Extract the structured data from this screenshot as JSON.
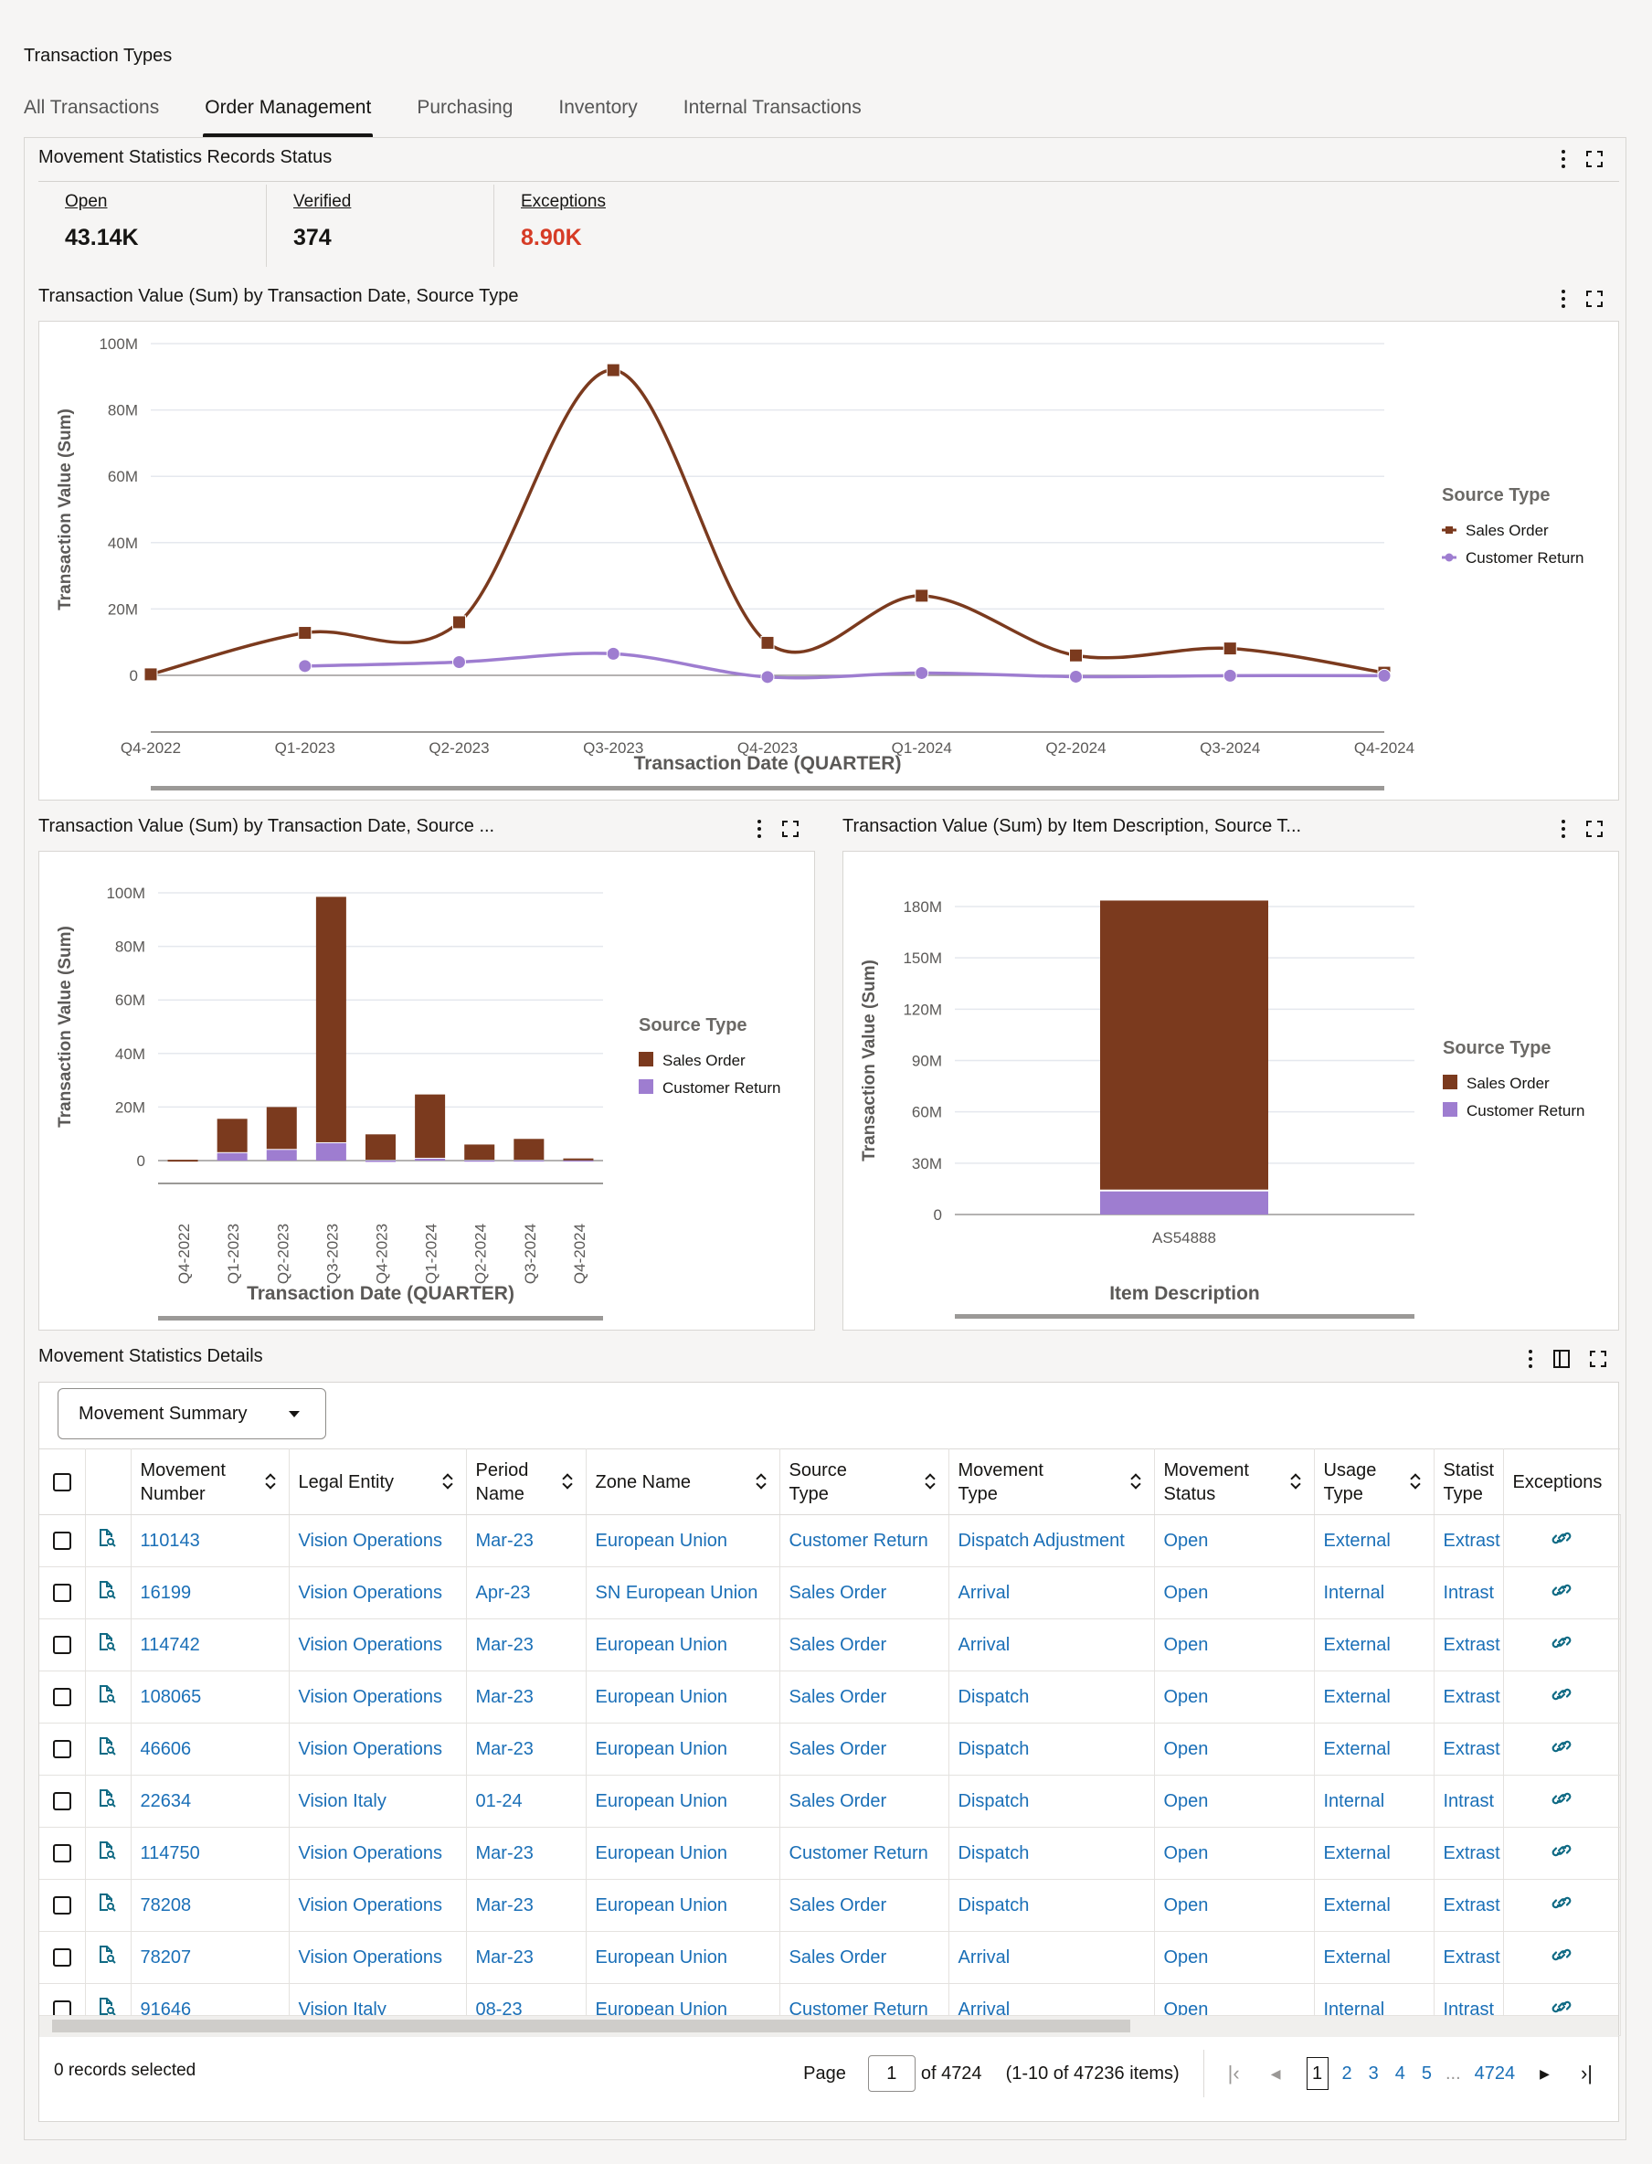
{
  "page": {
    "title": "Transaction Types",
    "tabs": [
      {
        "label": "All Transactions",
        "active": false
      },
      {
        "label": "Order Management",
        "active": true
      },
      {
        "label": "Purchasing",
        "active": false
      },
      {
        "label": "Inventory",
        "active": false
      },
      {
        "label": "Internal Transactions",
        "active": false
      }
    ]
  },
  "status_card": {
    "title": "Movement Statistics Records Status",
    "kpis": [
      {
        "label": "Open",
        "value": "43.14K",
        "color": "#161513"
      },
      {
        "label": "Verified",
        "value": "374",
        "color": "#161513"
      },
      {
        "label": "Exceptions",
        "value": "8.90K",
        "color": "#d63b25"
      }
    ]
  },
  "colors": {
    "sales_order": "#7b3a1e",
    "customer_return": "#9e7dd0",
    "link": "#1a6fb7",
    "exception": "#d63b25"
  },
  "chart_data": [
    {
      "type": "line",
      "title": "Transaction Value (Sum) by Transaction Date, Source Type",
      "xlabel": "Transaction Date (QUARTER)",
      "ylabel": "Transaction Value (Sum)",
      "categories": [
        "Q4-2022",
        "Q1-2023",
        "Q2-2023",
        "Q3-2023",
        "Q4-2023",
        "Q1-2024",
        "Q2-2024",
        "Q3-2024",
        "Q4-2024"
      ],
      "yticks": [
        "0",
        "20M",
        "40M",
        "60M",
        "80M",
        "100M"
      ],
      "ylim": [
        0,
        100
      ],
      "yunit": "M",
      "grid": true,
      "legend": {
        "title": "Source Type",
        "position": "right"
      },
      "series": [
        {
          "name": "Sales Order",
          "marker": "square",
          "values": [
            0.3,
            12.8,
            16,
            92,
            9.8,
            24,
            6,
            8.1,
            0.8
          ]
        },
        {
          "name": "Customer Return",
          "marker": "circle",
          "values": [
            null,
            2.8,
            4,
            6.5,
            -0.5,
            0.7,
            -0.4,
            -0.1,
            -0.1
          ]
        }
      ]
    },
    {
      "type": "bar",
      "stacked": true,
      "title": "Transaction Value (Sum) by Transaction Date, Source ...",
      "xlabel": "Transaction Date (QUARTER)",
      "ylabel": "Transaction Value (Sum)",
      "categories": [
        "Q4-2022",
        "Q1-2023",
        "Q2-2023",
        "Q3-2023",
        "Q4-2023",
        "Q1-2024",
        "Q2-2024",
        "Q3-2024",
        "Q4-2024"
      ],
      "yticks": [
        "0",
        "20M",
        "40M",
        "60M",
        "80M",
        "100M"
      ],
      "ylim": [
        0,
        100
      ],
      "yunit": "M",
      "grid": true,
      "legend": {
        "title": "Source Type",
        "position": "right"
      },
      "series": [
        {
          "name": "Sales Order",
          "values": [
            0.3,
            12.8,
            16,
            92,
            9.8,
            24,
            6,
            8.1,
            0.8
          ]
        },
        {
          "name": "Customer Return",
          "values": [
            0,
            2.8,
            4,
            6.5,
            -0.5,
            0.7,
            -0.4,
            -0.1,
            -0.1
          ]
        }
      ]
    },
    {
      "type": "bar",
      "stacked": true,
      "title": "Transaction Value (Sum) by Item Description, Source T...",
      "xlabel": "Item Description",
      "ylabel": "Transaction Value (Sum)",
      "categories": [
        "AS54888"
      ],
      "yticks": [
        "0",
        "30M",
        "60M",
        "90M",
        "120M",
        "150M",
        "180M"
      ],
      "ylim": [
        0,
        180
      ],
      "yunit": "M",
      "grid": true,
      "legend": {
        "title": "Source Type",
        "position": "right"
      },
      "series": [
        {
          "name": "Sales Order",
          "values": [
            170
          ]
        },
        {
          "name": "Customer Return",
          "values": [
            13.5
          ]
        }
      ]
    }
  ],
  "table": {
    "title": "Movement Statistics Details",
    "view_select": "Movement Summary",
    "columns": [
      "Movement Number",
      "Legal Entity",
      "Period Name",
      "Zone Name",
      "Source Type",
      "Movement Type",
      "Movement Status",
      "Usage Type",
      "Statistical Type",
      "Exceptions"
    ],
    "column_headers_display": [
      [
        "Movement",
        "Number"
      ],
      [
        "Legal Entity"
      ],
      [
        "Period",
        "Name"
      ],
      [
        "Zone Name"
      ],
      [
        "Source",
        "Type"
      ],
      [
        "Movement",
        "Type"
      ],
      [
        "Movement",
        "Status"
      ],
      [
        "Usage",
        "Type"
      ],
      [
        "Statist",
        "Type"
      ],
      [
        "Exceptions"
      ]
    ],
    "rows": [
      {
        "number": "110143",
        "entity": "Vision Operations",
        "period": "Mar-23",
        "zone": "European Union",
        "source": "Customer Return",
        "mtype": "Dispatch Adjustment",
        "status": "Open",
        "usage": "External",
        "stat": "Extrast"
      },
      {
        "number": "16199",
        "entity": "Vision Operations",
        "period": "Apr-23",
        "zone": "SN European Union",
        "source": "Sales Order",
        "mtype": "Arrival",
        "status": "Open",
        "usage": "Internal",
        "stat": "Intrast"
      },
      {
        "number": "114742",
        "entity": "Vision Operations",
        "period": "Mar-23",
        "zone": "European Union",
        "source": "Sales Order",
        "mtype": "Arrival",
        "status": "Open",
        "usage": "External",
        "stat": "Extrast"
      },
      {
        "number": "108065",
        "entity": "Vision Operations",
        "period": "Mar-23",
        "zone": "European Union",
        "source": "Sales Order",
        "mtype": "Dispatch",
        "status": "Open",
        "usage": "External",
        "stat": "Extrast"
      },
      {
        "number": "46606",
        "entity": "Vision Operations",
        "period": "Mar-23",
        "zone": "European Union",
        "source": "Sales Order",
        "mtype": "Dispatch",
        "status": "Open",
        "usage": "External",
        "stat": "Extrast"
      },
      {
        "number": "22634",
        "entity": "Vision Italy",
        "period": "01-24",
        "zone": "European Union",
        "source": "Sales Order",
        "mtype": "Dispatch",
        "status": "Open",
        "usage": "Internal",
        "stat": "Intrast"
      },
      {
        "number": "114750",
        "entity": "Vision Operations",
        "period": "Mar-23",
        "zone": "European Union",
        "source": "Customer Return",
        "mtype": "Dispatch",
        "status": "Open",
        "usage": "External",
        "stat": "Extrast"
      },
      {
        "number": "78208",
        "entity": "Vision Operations",
        "period": "Mar-23",
        "zone": "European Union",
        "source": "Sales Order",
        "mtype": "Dispatch",
        "status": "Open",
        "usage": "External",
        "stat": "Extrast"
      },
      {
        "number": "78207",
        "entity": "Vision Operations",
        "period": "Mar-23",
        "zone": "European Union",
        "source": "Sales Order",
        "mtype": "Arrival",
        "status": "Open",
        "usage": "External",
        "stat": "Extrast"
      },
      {
        "number": "91646",
        "entity": "Vision Italy",
        "period": "08-23",
        "zone": "European Union",
        "source": "Customer Return",
        "mtype": "Arrival",
        "status": "Open",
        "usage": "Internal",
        "stat": "Intrast"
      }
    ],
    "footer": {
      "selected": "0 records selected",
      "page_label": "Page",
      "page_value": "1",
      "of_pages": "of 4724",
      "range": "(1-10 of 47236 items)",
      "pages": [
        "1",
        "2",
        "3",
        "4",
        "5"
      ],
      "ellipsis": "...",
      "last_page": "4724"
    }
  },
  "icons": {
    "menu": "kebab-icon",
    "expand": "fullscreen-icon",
    "detail": "document-search-icon",
    "exception": "link-icon",
    "panel": "column-panel-icon",
    "sort": "sort-arrows-icon"
  }
}
